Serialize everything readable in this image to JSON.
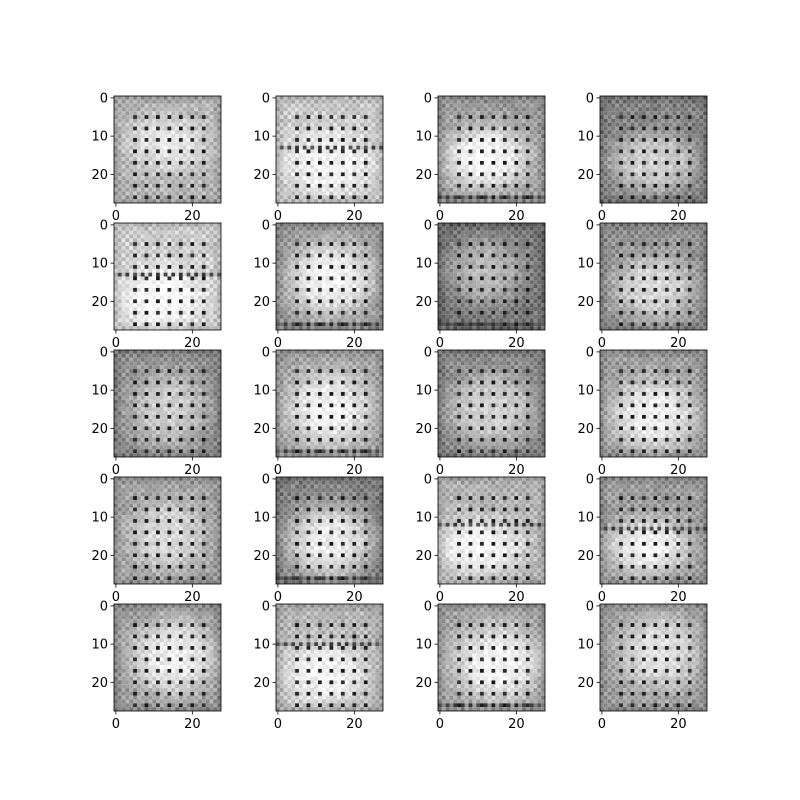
{
  "chart_data": {
    "type": "heatmap",
    "description_free": true,
    "grid": "off",
    "colormap": "gray",
    "image_size": [
      28,
      28
    ],
    "layout": {
      "rows": 5,
      "cols": 4
    },
    "xlim": [
      0,
      27
    ],
    "ylim": [
      27,
      0
    ],
    "xticks": [
      0,
      20
    ],
    "yticks": [
      0,
      10,
      20
    ],
    "xtick_labels": [
      "0",
      "20"
    ],
    "ytick_labels": [
      "0",
      "10",
      "20"
    ],
    "panels": [
      {
        "bg": 0.7,
        "blob": [
          0.5,
          0.45,
          0.42,
          0.3
        ],
        "blobLevel": 0.9,
        "band": 16,
        "dark": []
      },
      {
        "bg": 0.78,
        "blob": [
          0.5,
          0.62,
          0.46,
          0.36
        ],
        "blobLevel": 0.96,
        "band": 13,
        "dark": [
          13
        ]
      },
      {
        "bg": 0.6,
        "blob": [
          0.45,
          0.58,
          0.44,
          0.34
        ],
        "blobLevel": 0.98,
        "band": null,
        "dark": [
          26
        ]
      },
      {
        "bg": 0.5,
        "blob": [
          0.5,
          0.62,
          0.45,
          0.32
        ],
        "blobLevel": 0.82,
        "band": null,
        "dark": []
      },
      {
        "bg": 0.8,
        "blob": [
          0.45,
          0.7,
          0.45,
          0.35
        ],
        "blobLevel": 0.98,
        "band": 13,
        "dark": [
          13
        ]
      },
      {
        "bg": 0.58,
        "blob": [
          0.52,
          0.52,
          0.45,
          0.4
        ],
        "blobLevel": 0.96,
        "band": null,
        "dark": [
          26
        ]
      },
      {
        "bg": 0.45,
        "blob": [
          0.45,
          0.45,
          0.4,
          0.35
        ],
        "blobLevel": 0.72,
        "band": null,
        "dark": [
          26
        ]
      },
      {
        "bg": 0.55,
        "blob": [
          0.5,
          0.6,
          0.42,
          0.35
        ],
        "blobLevel": 0.85,
        "band": null,
        "dark": []
      },
      {
        "bg": 0.55,
        "blob": [
          0.5,
          0.55,
          0.4,
          0.4
        ],
        "blobLevel": 0.8,
        "band": null,
        "dark": []
      },
      {
        "bg": 0.62,
        "blob": [
          0.5,
          0.55,
          0.45,
          0.4
        ],
        "blobLevel": 0.95,
        "band": null,
        "dark": [
          26
        ]
      },
      {
        "bg": 0.52,
        "blob": [
          0.5,
          0.55,
          0.45,
          0.38
        ],
        "blobLevel": 0.82,
        "band": null,
        "dark": []
      },
      {
        "bg": 0.6,
        "blob": [
          0.5,
          0.6,
          0.45,
          0.38
        ],
        "blobLevel": 0.94,
        "band": null,
        "dark": []
      },
      {
        "bg": 0.62,
        "blob": [
          0.5,
          0.55,
          0.4,
          0.38
        ],
        "blobLevel": 0.85,
        "band": null,
        "dark": []
      },
      {
        "bg": 0.5,
        "blob": [
          0.5,
          0.6,
          0.45,
          0.38
        ],
        "blobLevel": 0.93,
        "band": null,
        "dark": [
          26
        ]
      },
      {
        "bg": 0.7,
        "blob": [
          0.4,
          0.65,
          0.45,
          0.3
        ],
        "blobLevel": 0.97,
        "band": 12,
        "dark": [
          12
        ]
      },
      {
        "bg": 0.6,
        "blob": [
          0.45,
          0.65,
          0.42,
          0.3
        ],
        "blobLevel": 0.96,
        "band": 13,
        "dark": [
          13
        ]
      },
      {
        "bg": 0.6,
        "blob": [
          0.55,
          0.5,
          0.45,
          0.4
        ],
        "blobLevel": 0.93,
        "band": null,
        "dark": []
      },
      {
        "bg": 0.7,
        "blob": [
          0.45,
          0.65,
          0.45,
          0.35
        ],
        "blobLevel": 0.96,
        "band": 10,
        "dark": [
          10
        ]
      },
      {
        "bg": 0.62,
        "blob": [
          0.55,
          0.55,
          0.45,
          0.4
        ],
        "blobLevel": 0.96,
        "band": null,
        "dark": [
          26
        ]
      },
      {
        "bg": 0.6,
        "blob": [
          0.55,
          0.45,
          0.42,
          0.4
        ],
        "blobLevel": 0.88,
        "band": null,
        "dark": []
      }
    ]
  }
}
